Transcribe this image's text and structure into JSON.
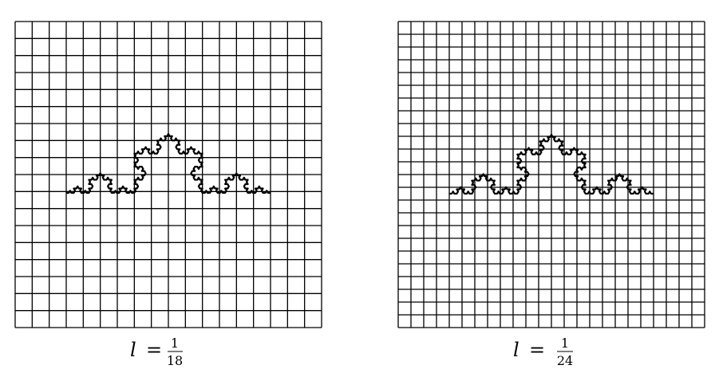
{
  "panels": [
    {
      "name": "left",
      "cells": 18,
      "koch_iterations": 4,
      "caption": {
        "var": "l",
        "eq": "=",
        "num": "1",
        "den": "18"
      }
    },
    {
      "name": "right",
      "cells": 24,
      "koch_iterations": 4,
      "caption": {
        "var": "l",
        "eq": "=",
        "num": "1",
        "den": "24"
      }
    }
  ]
}
